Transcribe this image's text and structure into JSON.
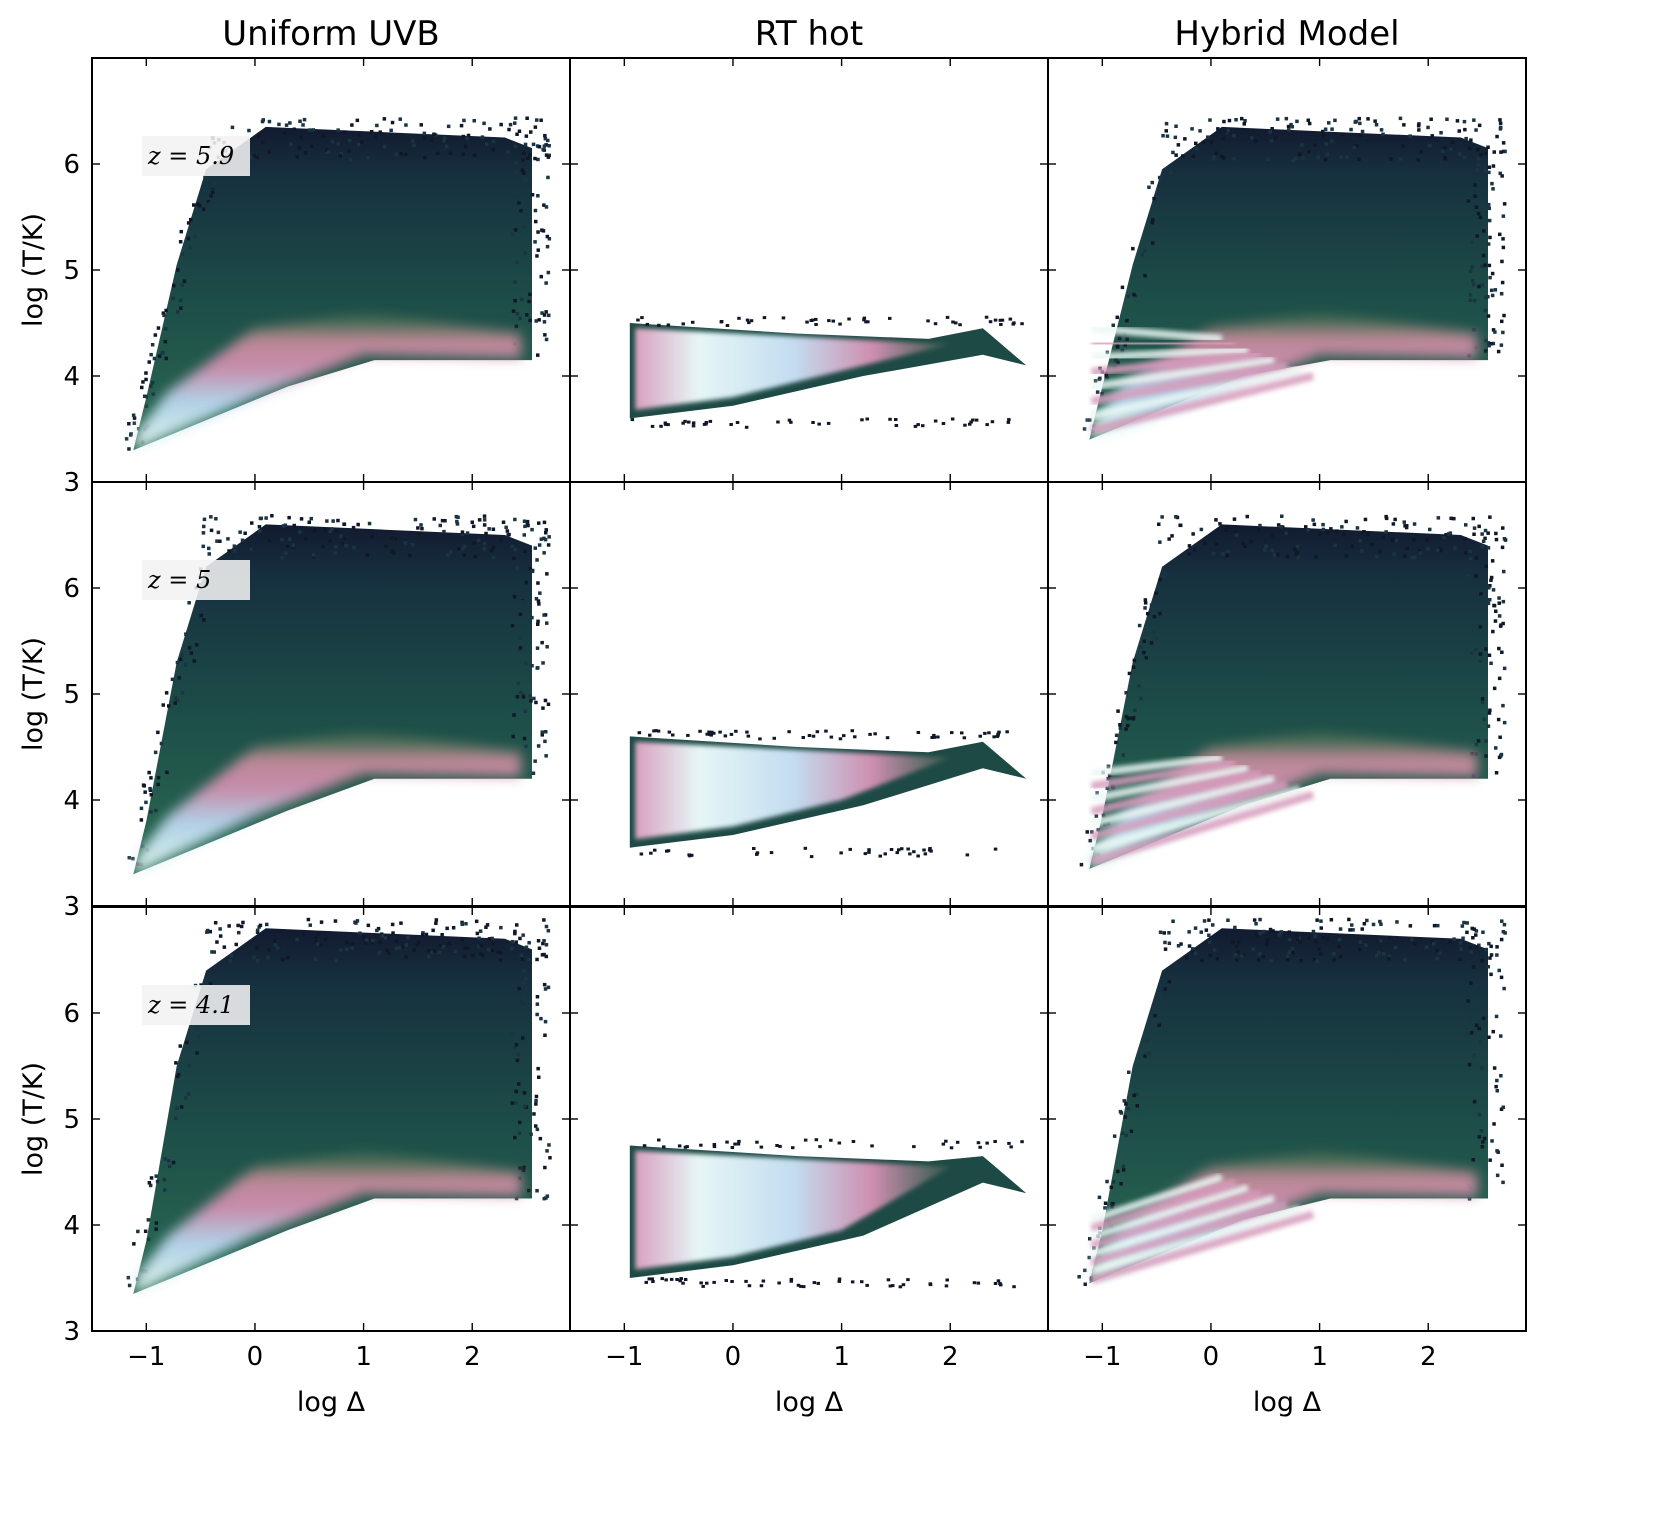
{
  "column_titles": [
    "Uniform UVB",
    "RT hot",
    "Hybrid Model"
  ],
  "row_labels": [
    "z = 5.9",
    "z = 5",
    "z = 4.1"
  ],
  "ylabel": "log (T/K)",
  "xlabel": "log Δ",
  "colors": {
    "colormap": "cubehelix",
    "frame": "#000000",
    "background": "#ffffff"
  },
  "chart_data": [
    {
      "type": "heatmap",
      "column": "Uniform UVB",
      "redshift_label": "z = 5.9",
      "xlabel": "",
      "ylabel": "log (T/K)",
      "xlim": [
        -1.5,
        2.9
      ],
      "ylim": [
        3,
        7
      ],
      "xticks": [
        -1,
        0,
        1,
        2
      ],
      "yticks": [
        3,
        4,
        5,
        6
      ],
      "model": "uniform",
      "t_cold": 3.3,
      "t_plateau": 4.15,
      "t_max": 6.35
    },
    {
      "type": "heatmap",
      "column": "RT hot",
      "redshift_label": "",
      "xlabel": "",
      "ylabel": "",
      "xlim": [
        -1.5,
        2.9
      ],
      "ylim": [
        3,
        7
      ],
      "xticks": [
        -1,
        0,
        1,
        2
      ],
      "yticks": [
        3,
        4,
        5,
        6
      ],
      "model": "rt",
      "t_top": 4.5,
      "t_bottom": 3.6,
      "t_end": 4.1
    },
    {
      "type": "heatmap",
      "column": "Hybrid Model",
      "redshift_label": "",
      "xlabel": "",
      "ylabel": "",
      "xlim": [
        -1.5,
        2.9
      ],
      "ylim": [
        3,
        7
      ],
      "xticks": [
        -1,
        0,
        1,
        2
      ],
      "yticks": [
        3,
        4,
        5,
        6
      ],
      "model": "hybrid",
      "t_cold": 3.4,
      "t_plateau": 4.15,
      "t_max": 6.35,
      "t_fan": 4.5
    },
    {
      "type": "heatmap",
      "column": "Uniform UVB",
      "redshift_label": "z = 5",
      "xlabel": "",
      "ylabel": "log (T/K)",
      "xlim": [
        -1.5,
        2.9
      ],
      "ylim": [
        3,
        7
      ],
      "xticks": [
        -1,
        0,
        1,
        2
      ],
      "yticks": [
        3,
        4,
        5,
        6
      ],
      "model": "uniform",
      "t_cold": 3.3,
      "t_plateau": 4.2,
      "t_max": 6.6
    },
    {
      "type": "heatmap",
      "column": "RT hot",
      "redshift_label": "",
      "xlabel": "",
      "ylabel": "",
      "xlim": [
        -1.5,
        2.9
      ],
      "ylim": [
        3,
        7
      ],
      "xticks": [
        -1,
        0,
        1,
        2
      ],
      "yticks": [
        3,
        4,
        5,
        6
      ],
      "model": "rt",
      "t_top": 4.6,
      "t_bottom": 3.55,
      "t_end": 4.2
    },
    {
      "type": "heatmap",
      "column": "Hybrid Model",
      "redshift_label": "",
      "xlabel": "",
      "ylabel": "",
      "xlim": [
        -1.5,
        2.9
      ],
      "ylim": [
        3,
        7
      ],
      "xticks": [
        -1,
        0,
        1,
        2
      ],
      "yticks": [
        3,
        4,
        5,
        6
      ],
      "model": "hybrid",
      "t_cold": 3.35,
      "t_plateau": 4.2,
      "t_max": 6.6,
      "t_fan": 4.3
    },
    {
      "type": "heatmap",
      "column": "Uniform UVB",
      "redshift_label": "z = 4.1",
      "xlabel": "log Δ",
      "ylabel": "log (T/K)",
      "xlim": [
        -1.5,
        2.9
      ],
      "ylim": [
        3,
        7
      ],
      "xticks": [
        -1,
        0,
        1,
        2
      ],
      "yticks": [
        3,
        4,
        5,
        6
      ],
      "model": "uniform",
      "t_cold": 3.35,
      "t_plateau": 4.25,
      "t_max": 6.8
    },
    {
      "type": "heatmap",
      "column": "RT hot",
      "redshift_label": "",
      "xlabel": "log Δ",
      "ylabel": "",
      "xlim": [
        -1.5,
        2.9
      ],
      "ylim": [
        3,
        7
      ],
      "xticks": [
        -1,
        0,
        1,
        2
      ],
      "yticks": [
        3,
        4,
        5,
        6
      ],
      "model": "rt",
      "t_top": 4.75,
      "t_bottom": 3.5,
      "t_end": 4.3
    },
    {
      "type": "heatmap",
      "column": "Hybrid Model",
      "redshift_label": "",
      "xlabel": "log Δ",
      "ylabel": "",
      "xlim": [
        -1.5,
        2.9
      ],
      "ylim": [
        3,
        7
      ],
      "xticks": [
        -1,
        0,
        1,
        2
      ],
      "yticks": [
        3,
        4,
        5,
        6
      ],
      "model": "hybrid",
      "t_cold": 3.45,
      "t_plateau": 4.25,
      "t_max": 6.8,
      "t_fan": 4.1
    }
  ]
}
